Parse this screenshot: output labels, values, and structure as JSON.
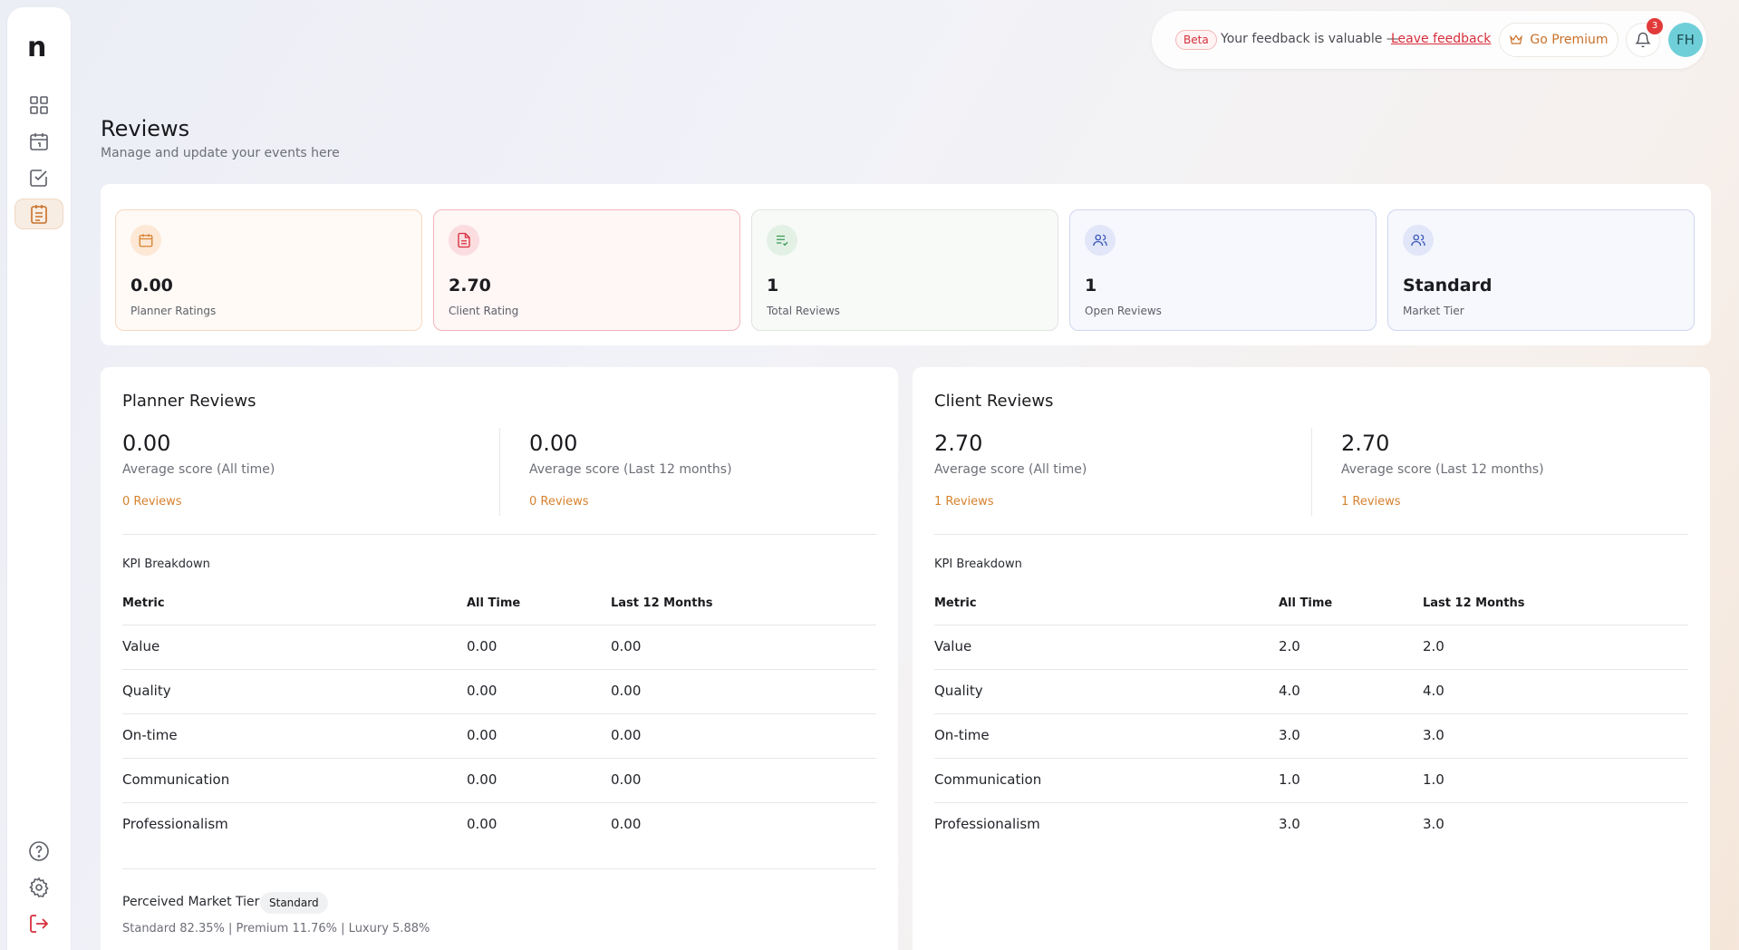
{
  "sidebar": {
    "logo": "n",
    "nav": [
      "dashboard-icon",
      "calendar-icon",
      "tasks-icon",
      "reviews-icon"
    ],
    "bottom": [
      "help-icon",
      "settings-icon",
      "logout-icon"
    ]
  },
  "topbar": {
    "beta": "Beta",
    "feedback_text": "Your feedback is valuable —",
    "feedback_link": "Leave feedback",
    "premium_label": "Go Premium",
    "notification_count": "3",
    "avatar_initials": "FH"
  },
  "header": {
    "title": "Reviews",
    "subtitle": "Manage and update your events here"
  },
  "stats": [
    {
      "value": "0.00",
      "label": "Planner Ratings"
    },
    {
      "value": "2.70",
      "label": "Client Rating"
    },
    {
      "value": "1",
      "label": "Total Reviews"
    },
    {
      "value": "1",
      "label": "Open Reviews"
    },
    {
      "value": "Standard",
      "label": "Market Tier"
    }
  ],
  "planner": {
    "title": "Planner Reviews",
    "all_time_score": "0.00",
    "all_time_label": "Average score (All time)",
    "all_time_count": "0 Reviews",
    "last12_score": "0.00",
    "last12_label": "Average score (Last 12 months)",
    "last12_count": "0 Reviews",
    "kpi_title": "KPI Breakdown",
    "columns": [
      "Metric",
      "All Time",
      "Last 12 Months"
    ],
    "rows": [
      {
        "metric": "Value",
        "all_time": "0.00",
        "last12": "0.00"
      },
      {
        "metric": "Quality",
        "all_time": "0.00",
        "last12": "0.00"
      },
      {
        "metric": "On-time",
        "all_time": "0.00",
        "last12": "0.00"
      },
      {
        "metric": "Communication",
        "all_time": "0.00",
        "last12": "0.00"
      },
      {
        "metric": "Professionalism",
        "all_time": "0.00",
        "last12": "0.00"
      }
    ],
    "tier_label": "Perceived Market Tier",
    "tier_badge": "Standard",
    "tier_breakdown": "Standard 82.35% | Premium 11.76% | Luxury 5.88%"
  },
  "client": {
    "title": "Client Reviews",
    "all_time_score": "2.70",
    "all_time_label": "Average score (All time)",
    "all_time_count": "1 Reviews",
    "last12_score": "2.70",
    "last12_label": "Average score (Last 12 months)",
    "last12_count": "1 Reviews",
    "kpi_title": "KPI Breakdown",
    "columns": [
      "Metric",
      "All Time",
      "Last 12 Months"
    ],
    "rows": [
      {
        "metric": "Value",
        "all_time": "2.0",
        "last12": "2.0"
      },
      {
        "metric": "Quality",
        "all_time": "4.0",
        "last12": "4.0"
      },
      {
        "metric": "On-time",
        "all_time": "3.0",
        "last12": "3.0"
      },
      {
        "metric": "Communication",
        "all_time": "1.0",
        "last12": "1.0"
      },
      {
        "metric": "Professionalism",
        "all_time": "3.0",
        "last12": "3.0"
      }
    ]
  },
  "colors": {
    "accent": "#d6822f",
    "danger": "#d72e3c",
    "avatar": "#6fcfd9"
  }
}
